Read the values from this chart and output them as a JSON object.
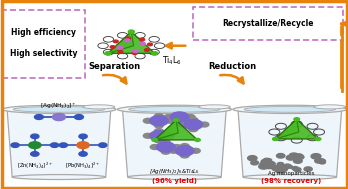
{
  "background_color": "#ffffff",
  "outer_border_color": "#e8820a",
  "outer_border_lw": 2.5,
  "box_efficiency_text": [
    "High efficiency",
    "High selectivity"
  ],
  "box_efficiency_color": "#bb66bb",
  "box_recycle_text": "Recrystallize/Recycle",
  "box_recycle_color": "#bb66bb",
  "ti4l6_label": "Ti$_4$L$_6$",
  "sep_label": "Separation",
  "red_label": "Reduction",
  "beaker1_label1": "[Ag(NH$_3$)$_2$]$^+$",
  "beaker1_label2": "[Zn(NH$_3$)$_4$]$^{2+}$",
  "beaker1_label3": "[Pb(NH$_3$)$_4$]$^{2+}$",
  "beaker2_label": "[Ag(NH$_3$)$_2$]$_6$&Ti$_4$L$_6$",
  "beaker2_yield": "(96% yield)",
  "beaker3_label": "Ag nanoparticles",
  "beaker3_yield": "(98% recovery)",
  "yield_color": "#dd0000",
  "arrow_color": "#e8820a",
  "ag_color": "#8877cc",
  "zn_color": "#228833",
  "pb_color": "#dd6622",
  "nh3_arm_color": "#3355bb",
  "cage_color": "#44bb22",
  "cage_edge": "#226600",
  "nano_color": "#999999",
  "fig_width": 3.48,
  "fig_height": 1.89,
  "dpi": 100
}
